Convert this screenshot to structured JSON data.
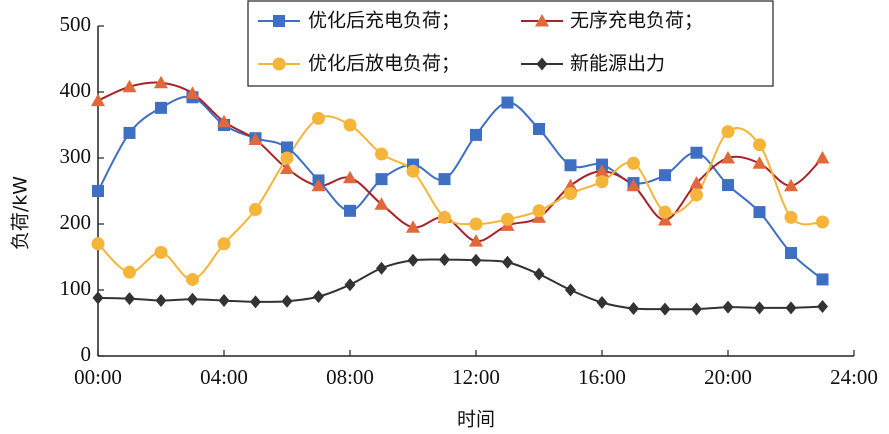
{
  "chart_data": {
    "type": "line",
    "xlabel": "时间",
    "ylabel": "负荷/kW",
    "xlim": [
      0,
      24
    ],
    "ylim": [
      0,
      500
    ],
    "x_ticks": [
      0,
      4,
      8,
      12,
      16,
      20,
      24
    ],
    "x_tick_labels": [
      "00:00",
      "04:00",
      "08:00",
      "12:00",
      "16:00",
      "20:00",
      "24:00"
    ],
    "y_ticks": [
      0,
      100,
      200,
      300,
      400,
      500
    ],
    "y_tick_labels": [
      "0",
      "100",
      "200",
      "300",
      "400",
      "500"
    ],
    "x": [
      0,
      1,
      2,
      3,
      4,
      5,
      6,
      7,
      8,
      9,
      10,
      11,
      12,
      13,
      14,
      15,
      16,
      17,
      18,
      19,
      20,
      21,
      22,
      23
    ],
    "grid": false,
    "legend_position": "top-right",
    "series": [
      {
        "name": "优化后充电负荷；",
        "marker": "square",
        "color": "#3d6fc2",
        "values": [
          250,
          338,
          376,
          392,
          350,
          330,
          316,
          266,
          220,
          268,
          290,
          268,
          335,
          384,
          344,
          289,
          290,
          262,
          274,
          308,
          259,
          218,
          156,
          116
        ]
      },
      {
        "name": "无序充电负荷；",
        "marker": "triangle",
        "color": "#e0683a",
        "line_color": "#a8222b",
        "values": [
          387,
          408,
          414,
          398,
          355,
          328,
          284,
          258,
          270,
          230,
          195,
          210,
          174,
          198,
          210,
          258,
          280,
          258,
          206,
          262,
          300,
          292,
          258,
          300
        ]
      },
      {
        "name": "优化后放电负荷；",
        "marker": "circle",
        "color": "#f4b53a",
        "values": [
          170,
          127,
          157,
          116,
          170,
          222,
          300,
          360,
          350,
          306,
          280,
          210,
          200,
          207,
          220,
          246,
          264,
          292,
          218,
          244,
          340,
          320,
          210,
          203
        ]
      },
      {
        "name": "新能源出力",
        "marker": "diamond",
        "color": "#333333",
        "values": [
          88,
          87,
          84,
          86,
          84,
          82,
          83,
          90,
          108,
          133,
          145,
          146,
          145,
          142,
          124,
          100,
          81,
          72,
          71,
          71,
          74,
          73,
          73,
          75
        ]
      }
    ]
  }
}
